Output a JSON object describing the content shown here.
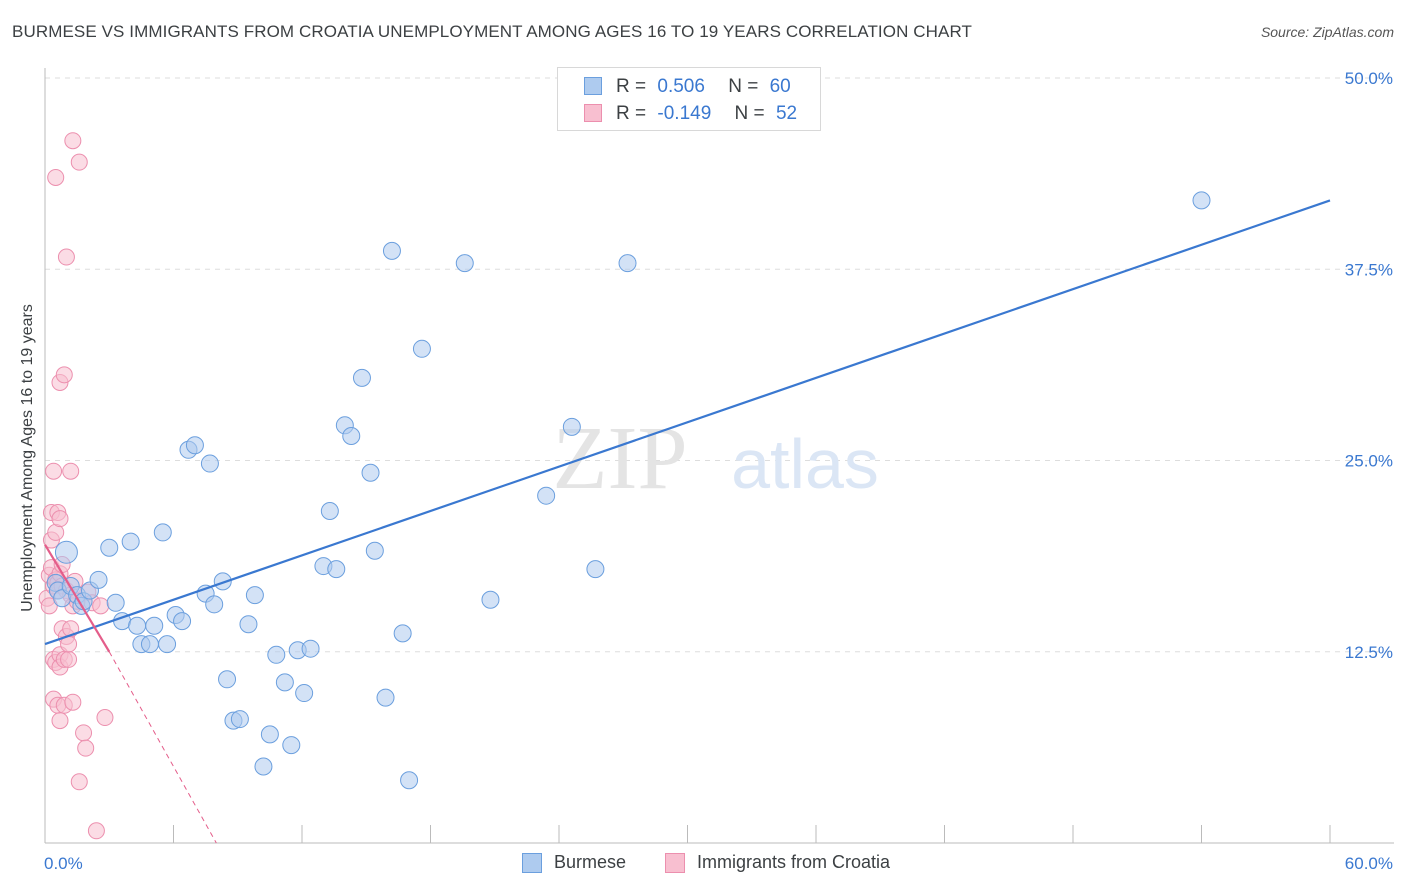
{
  "title": "BURMESE VS IMMIGRANTS FROM CROATIA UNEMPLOYMENT AMONG AGES 16 TO 19 YEARS CORRELATION CHART",
  "source": "Source: ZipAtlas.com",
  "watermark": {
    "zip": "ZIP",
    "atlas": "atlas"
  },
  "legend_top": {
    "rows": [
      {
        "r_label": "R =",
        "r_value": "0.506",
        "n_label": "N =",
        "n_value": "60"
      },
      {
        "r_label": "R =",
        "r_value": "-0.149",
        "n_label": "N =",
        "n_value": "52"
      }
    ]
  },
  "legend_bottom": {
    "items": [
      {
        "label": "Burmese"
      },
      {
        "label": "Immigrants from Croatia"
      }
    ]
  },
  "colors": {
    "burmese_fill": "#aecbef",
    "burmese_stroke": "#6b9fde",
    "burmese_line": "#3a78d0",
    "croatia_fill": "#f8bfd0",
    "croatia_stroke": "#ec8fae",
    "croatia_line": "#e45d8a",
    "tick_label": "#3a78d0",
    "grid": "#dddddd"
  },
  "chart_data": {
    "type": "scatter",
    "title": "BURMESE VS IMMIGRANTS FROM CROATIA UNEMPLOYMENT AMONG AGES 16 TO 19 YEARS CORRELATION CHART",
    "xlabel": "",
    "ylabel": "Unemployment Among Ages 16 to 19 years",
    "xlim": [
      0,
      60
    ],
    "ylim": [
      0,
      50
    ],
    "x_tick_labels": [
      "0.0%",
      "60.0%"
    ],
    "y_ticks": [
      12.5,
      25.0,
      37.5,
      50.0
    ],
    "y_tick_labels": [
      "12.5%",
      "25.0%",
      "37.5%",
      "50.0%"
    ],
    "grid": true,
    "legend_position": "top-center",
    "series": [
      {
        "name": "Burmese",
        "R": 0.506,
        "N": 60,
        "trend": {
          "x": [
            0,
            60
          ],
          "y": [
            13.0,
            42.0
          ],
          "style": "solid"
        },
        "points": [
          [
            0.5,
            17.0
          ],
          [
            0.6,
            16.5
          ],
          [
            0.8,
            16.0
          ],
          [
            1.0,
            19.0
          ],
          [
            1.2,
            16.8
          ],
          [
            1.5,
            16.2
          ],
          [
            1.7,
            15.5
          ],
          [
            1.8,
            15.8
          ],
          [
            2.1,
            16.5
          ],
          [
            2.5,
            17.2
          ],
          [
            3.0,
            19.3
          ],
          [
            3.3,
            15.7
          ],
          [
            3.6,
            14.5
          ],
          [
            4.0,
            19.7
          ],
          [
            4.3,
            14.2
          ],
          [
            4.5,
            13.0
          ],
          [
            4.9,
            13.0
          ],
          [
            5.1,
            14.2
          ],
          [
            5.5,
            20.3
          ],
          [
            5.7,
            13.0
          ],
          [
            6.1,
            14.9
          ],
          [
            6.4,
            14.5
          ],
          [
            6.7,
            25.7
          ],
          [
            7.0,
            26.0
          ],
          [
            7.5,
            16.3
          ],
          [
            7.7,
            24.8
          ],
          [
            7.9,
            15.6
          ],
          [
            8.3,
            17.1
          ],
          [
            8.5,
            10.7
          ],
          [
            8.8,
            8.0
          ],
          [
            9.1,
            8.1
          ],
          [
            9.5,
            14.3
          ],
          [
            9.8,
            16.2
          ],
          [
            10.2,
            5.0
          ],
          [
            10.5,
            7.1
          ],
          [
            10.8,
            12.3
          ],
          [
            11.2,
            10.5
          ],
          [
            11.5,
            6.4
          ],
          [
            11.8,
            12.6
          ],
          [
            12.1,
            9.8
          ],
          [
            12.4,
            12.7
          ],
          [
            13.0,
            18.1
          ],
          [
            13.3,
            21.7
          ],
          [
            13.6,
            17.9
          ],
          [
            14.0,
            27.3
          ],
          [
            14.3,
            26.6
          ],
          [
            14.8,
            30.4
          ],
          [
            15.2,
            24.2
          ],
          [
            15.4,
            19.1
          ],
          [
            15.9,
            9.5
          ],
          [
            16.2,
            38.7
          ],
          [
            16.7,
            13.7
          ],
          [
            17.0,
            4.1
          ],
          [
            17.6,
            32.3
          ],
          [
            19.6,
            37.9
          ],
          [
            20.8,
            15.9
          ],
          [
            23.4,
            22.7
          ],
          [
            24.6,
            27.2
          ],
          [
            25.7,
            17.9
          ],
          [
            27.2,
            37.9
          ],
          [
            54.0,
            42.0
          ]
        ]
      },
      {
        "name": "Immigrants from Croatia",
        "R": -0.149,
        "N": 52,
        "trend": {
          "x": [
            0,
            3.0,
            8.0
          ],
          "y": [
            19.5,
            12.5,
            0.0
          ],
          "style": "solid-then-dashed"
        },
        "points": [
          [
            0.1,
            16.0
          ],
          [
            0.2,
            15.5
          ],
          [
            0.2,
            17.5
          ],
          [
            0.3,
            18.0
          ],
          [
            0.3,
            19.8
          ],
          [
            0.3,
            21.6
          ],
          [
            0.4,
            16.8
          ],
          [
            0.4,
            24.3
          ],
          [
            0.4,
            12.0
          ],
          [
            0.4,
            9.4
          ],
          [
            0.5,
            43.5
          ],
          [
            0.5,
            17.2
          ],
          [
            0.5,
            20.3
          ],
          [
            0.5,
            11.8
          ],
          [
            0.6,
            17.0
          ],
          [
            0.6,
            21.6
          ],
          [
            0.6,
            16.5
          ],
          [
            0.6,
            9.0
          ],
          [
            0.7,
            30.1
          ],
          [
            0.7,
            21.2
          ],
          [
            0.7,
            17.6
          ],
          [
            0.7,
            12.3
          ],
          [
            0.7,
            11.5
          ],
          [
            0.7,
            8.0
          ],
          [
            0.8,
            18.2
          ],
          [
            0.8,
            14.0
          ],
          [
            0.8,
            16.8
          ],
          [
            0.9,
            30.6
          ],
          [
            0.9,
            12.0
          ],
          [
            0.9,
            9.0
          ],
          [
            1.0,
            38.3
          ],
          [
            1.0,
            16.5
          ],
          [
            1.0,
            13.5
          ],
          [
            1.1,
            12.0
          ],
          [
            1.1,
            13.0
          ],
          [
            1.2,
            24.3
          ],
          [
            1.2,
            16.2
          ],
          [
            1.2,
            14.0
          ],
          [
            1.3,
            45.9
          ],
          [
            1.3,
            15.5
          ],
          [
            1.3,
            9.2
          ],
          [
            1.4,
            17.1
          ],
          [
            1.5,
            15.8
          ],
          [
            1.6,
            44.5
          ],
          [
            1.6,
            4.0
          ],
          [
            1.8,
            7.2
          ],
          [
            1.9,
            6.2
          ],
          [
            2.0,
            16.4
          ],
          [
            2.2,
            15.7
          ],
          [
            2.4,
            0.8
          ],
          [
            2.6,
            15.5
          ],
          [
            2.8,
            8.2
          ]
        ]
      }
    ]
  }
}
